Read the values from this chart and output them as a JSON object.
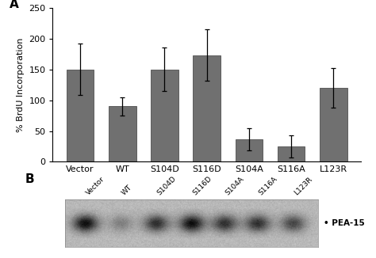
{
  "categories": [
    "Vector",
    "WT",
    "S104D",
    "S116D",
    "S104A",
    "S116A",
    "L123R"
  ],
  "values": [
    150,
    90,
    150,
    173,
    37,
    25,
    120
  ],
  "errors": [
    42,
    15,
    35,
    42,
    18,
    18,
    32
  ],
  "bar_color": "#707070",
  "bar_edge_color": "#505050",
  "ylim": [
    0,
    250
  ],
  "yticks": [
    0,
    50,
    100,
    150,
    200,
    250
  ],
  "ylabel": "% BrdU Incorporation",
  "label_A": "A",
  "label_B": "B",
  "pea15_label": "• PEA-15",
  "bar_width": 0.65,
  "background_color": "#ffffff",
  "band_x_fracs": [
    0.08,
    0.22,
    0.36,
    0.5,
    0.63,
    0.76,
    0.9
  ],
  "band_intensities": [
    0.15,
    0.05,
    0.12,
    0.15,
    0.12,
    0.12,
    0.1
  ],
  "blot_labels": [
    "Vector",
    "WT",
    "S104D",
    "S116D",
    "S104A",
    "S116A",
    "L123R"
  ],
  "tick_fontsize": 8,
  "axis_label_fontsize": 8,
  "panel_label_fontsize": 11
}
